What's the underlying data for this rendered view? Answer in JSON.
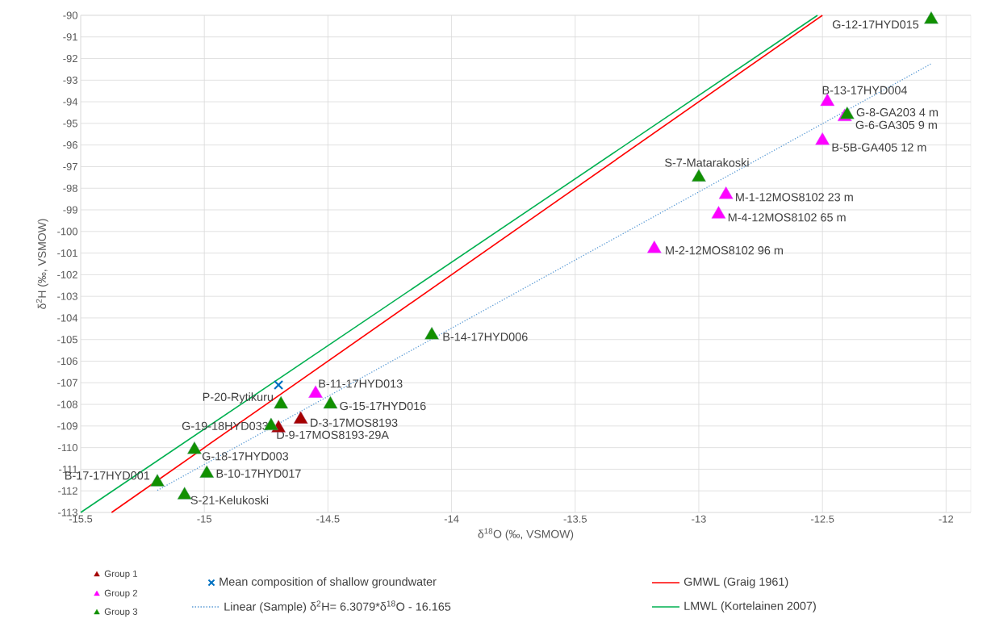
{
  "chart_data": {
    "type": "scatter",
    "xlabel": "δ$^{18}$O (‰, VSMOW)",
    "ylabel": "δ$^{2}$H (‰, VSMOW)",
    "xlim": [
      -15.5,
      -11.9
    ],
    "xticks": [
      -15.5,
      -15,
      -14.5,
      -14,
      -13.5,
      -13,
      -12.5,
      -12
    ],
    "ylim": [
      -113,
      -90
    ],
    "yticks": [
      -113,
      -112,
      -111,
      -110,
      -109,
      -108,
      -107,
      -106,
      -105,
      -104,
      -103,
      -102,
      -101,
      -100,
      -99,
      -98,
      -97,
      -96,
      -95,
      -94,
      -93,
      -92,
      -91,
      -90
    ],
    "grid": true,
    "legend": "bottom",
    "series": [
      {
        "name": "Group 1",
        "marker": "triangle",
        "color": "#a50000",
        "x": [
          -14.61,
          -14.7
        ],
        "values": [
          -108.7,
          -109.1
        ]
      },
      {
        "name": "Group 2",
        "marker": "triangle",
        "color": "#ff00ff",
        "x": [
          -14.55,
          -12.48,
          -12.41,
          -12.5,
          -12.89,
          -12.92,
          -13.18
        ],
        "values": [
          -107.5,
          -94.0,
          -94.7,
          -95.8,
          -98.3,
          -99.2,
          -100.8
        ]
      },
      {
        "name": "Group 3",
        "marker": "triangle",
        "color": "#119000",
        "x": [
          -12.06,
          -12.4,
          -13.0,
          -14.08,
          -14.49,
          -14.69,
          -14.73,
          -15.04,
          -14.99,
          -15.19,
          -15.08
        ],
        "values": [
          -90.2,
          -94.6,
          -97.5,
          -104.8,
          -108.0,
          -108.0,
          -109.0,
          -110.1,
          -111.2,
          -111.6,
          -112.2
        ]
      },
      {
        "name": "Mean composition of shallow groundwater",
        "marker": "cross",
        "color": "#0070c0",
        "x": [
          -14.7
        ],
        "values": [
          -107.1
        ]
      },
      {
        "name": "Linear (Sample) δ$^{2}$H= 6.3079*δ$^{18}$O - 16.165",
        "type": "line",
        "line_style": "dotted",
        "color": "#5b9bd5",
        "x": [
          -15.19,
          -12.06
        ],
        "values": [
          -111.98,
          -92.24
        ]
      },
      {
        "name": "GMWL (Graig 1961)",
        "type": "line",
        "line_style": "solid",
        "color": "#ff0000",
        "x": [
          -15.375,
          -12.5
        ],
        "values": [
          -113,
          -90
        ]
      },
      {
        "name": "LMWL (Kortelainen 2007)",
        "type": "line",
        "line_style": "solid",
        "color": "#00b050",
        "x": [
          -15.5,
          -12.52
        ],
        "values": [
          -113,
          -90
        ]
      }
    ],
    "annotations": [
      {
        "text": "G-12-17HYD015",
        "x": -12.06,
        "y": -90.2
      },
      {
        "text": "B-13-17HYD004",
        "x": -12.48,
        "y": -94.0
      },
      {
        "text": "G-8-GA203 4 m",
        "x": -12.4,
        "y": -94.6
      },
      {
        "text": "G-6-GA305 9 m",
        "x": -12.41,
        "y": -94.7
      },
      {
        "text": "B-5B-GA405 12 m",
        "x": -12.5,
        "y": -95.8
      },
      {
        "text": "S-7-Matarakoski",
        "x": -13.0,
        "y": -97.5
      },
      {
        "text": "M-1-12MOS8102 23 m",
        "x": -12.89,
        "y": -98.3
      },
      {
        "text": "M-4-12MOS8102 65 m",
        "x": -12.92,
        "y": -99.2
      },
      {
        "text": "M-2-12MOS8102 96 m",
        "x": -13.18,
        "y": -100.8
      },
      {
        "text": "B-14-17HYD006",
        "x": -14.08,
        "y": -104.8
      },
      {
        "text": "B-11-17HYD013",
        "x": -14.55,
        "y": -107.5
      },
      {
        "text": "G-15-17HYD016",
        "x": -14.49,
        "y": -108.0
      },
      {
        "text": "P-20-Rytikuru",
        "x": -14.69,
        "y": -108.0
      },
      {
        "text": "G-19-18HYD033",
        "x": -14.73,
        "y": -109.0
      },
      {
        "text": "D-3-17MOS8193",
        "x": -14.61,
        "y": -108.7
      },
      {
        "text": "D-9-17MOS8193-29A",
        "x": -14.7,
        "y": -109.1
      },
      {
        "text": "G-18-17HYD003",
        "x": -15.04,
        "y": -110.1
      },
      {
        "text": "B-10-17HYD017",
        "x": -14.99,
        "y": -111.2
      },
      {
        "text": "B-17-17HYD001",
        "x": -15.19,
        "y": -111.6
      },
      {
        "text": "S-21-Kelukoski",
        "x": -15.08,
        "y": -112.2
      }
    ]
  }
}
